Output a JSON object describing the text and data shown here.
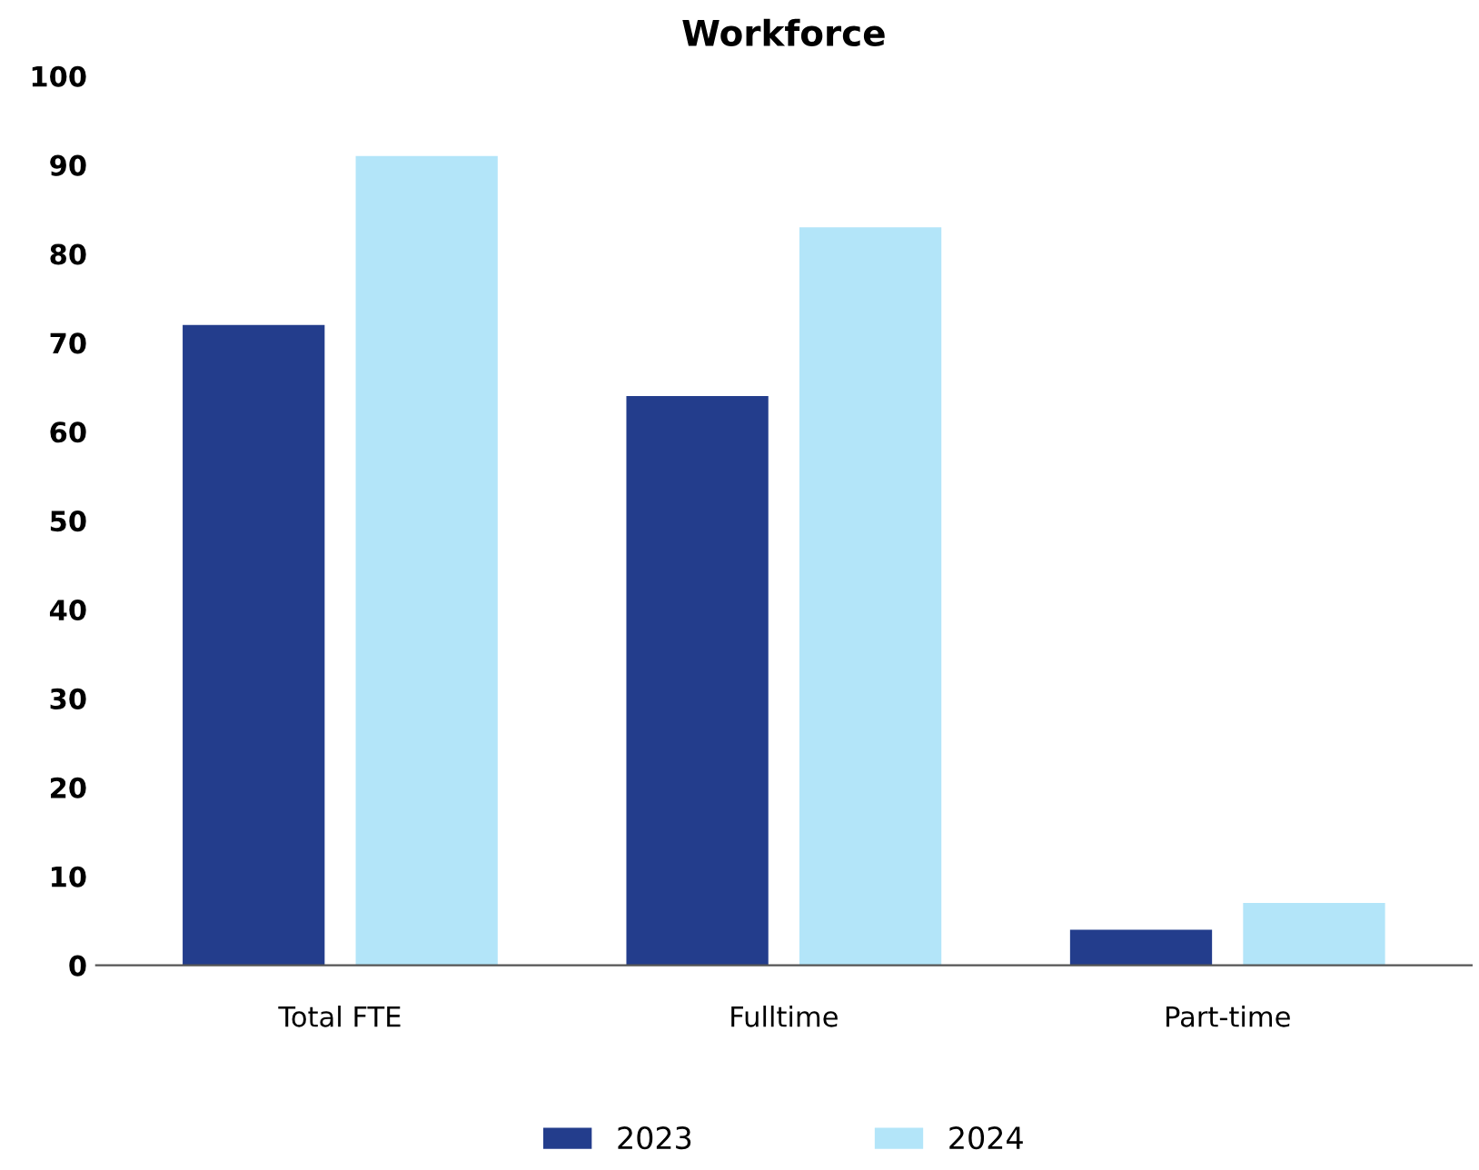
{
  "chart_data": {
    "type": "bar",
    "title": "Workforce",
    "categories": [
      "Total FTE",
      "Fulltime",
      "Part-time"
    ],
    "series": [
      {
        "name": "2023",
        "color": "#233d8c",
        "values": [
          72,
          64,
          4
        ]
      },
      {
        "name": "2024",
        "color": "#b3e5f9",
        "values": [
          91,
          83,
          7
        ]
      }
    ],
    "ylim": [
      0,
      100
    ],
    "yticks": [
      0,
      10,
      20,
      30,
      40,
      50,
      60,
      70,
      80,
      90,
      100
    ],
    "grid": false,
    "legend": "bottom"
  }
}
